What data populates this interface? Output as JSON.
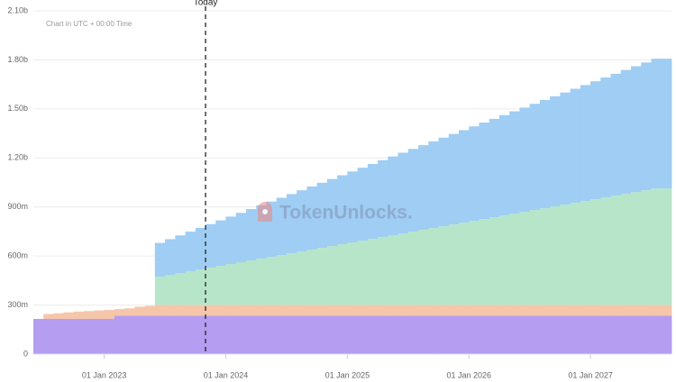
{
  "chart_data": {
    "type": "stacked-step-area",
    "note": "Chart in UTC + 00:00 Time",
    "watermark": "TokenUnlocks.",
    "annotation": {
      "x": "2023-11",
      "label": "Today"
    },
    "x": [
      "2022-06",
      "2022-07",
      "2022-08",
      "2022-09",
      "2022-10",
      "2022-11",
      "2022-12",
      "2023-01",
      "2023-02",
      "2023-03",
      "2023-04",
      "2023-05",
      "2023-06",
      "2023-07",
      "2023-08",
      "2023-09",
      "2023-10",
      "2023-11",
      "2023-12",
      "2024-01",
      "2024-02",
      "2024-03",
      "2024-04",
      "2024-05",
      "2024-06",
      "2024-07",
      "2024-08",
      "2024-09",
      "2024-10",
      "2024-11",
      "2024-12",
      "2025-01",
      "2025-02",
      "2025-03",
      "2025-04",
      "2025-05",
      "2025-06",
      "2025-07",
      "2025-08",
      "2025-09",
      "2025-10",
      "2025-11",
      "2025-12",
      "2026-01",
      "2026-02",
      "2026-03",
      "2026-04",
      "2026-05",
      "2026-06",
      "2026-07",
      "2026-08",
      "2026-09",
      "2026-10",
      "2026-11",
      "2026-12",
      "2027-01",
      "2027-02",
      "2027-03",
      "2027-04",
      "2027-05",
      "2027-06",
      "2027-07",
      "2027-08"
    ],
    "xlim": [
      "2022-06",
      "2027-09"
    ],
    "xticks": [
      {
        "value": "2023-01",
        "label": "01 Jan 2023"
      },
      {
        "value": "2024-01",
        "label": "01 Jan 2024"
      },
      {
        "value": "2025-01",
        "label": "01 Jan 2025"
      },
      {
        "value": "2026-01",
        "label": "01 Jan 2026"
      },
      {
        "value": "2027-01",
        "label": "01 Jan 2027"
      }
    ],
    "ylim": [
      0,
      2100
    ],
    "yticks": [
      0,
      {
        "value": 300,
        "label": "300m"
      },
      {
        "value": 600,
        "label": "600m"
      },
      {
        "value": 900,
        "label": "900m"
      },
      {
        "value": 1200,
        "label": "1.20b"
      },
      {
        "value": 1500,
        "label": "1.50b"
      },
      {
        "value": 1800,
        "label": "1.80b"
      },
      {
        "value": 2100,
        "label": "2.10b"
      }
    ],
    "grid": true,
    "series": [
      {
        "color": "#b59df1",
        "values": [
          215,
          215,
          215,
          215,
          215,
          215,
          215,
          215,
          235,
          235,
          235,
          235,
          235,
          235,
          235,
          235,
          235,
          235,
          235,
          235,
          235,
          235,
          235,
          235,
          235,
          235,
          235,
          235,
          235,
          235,
          235,
          235,
          235,
          235,
          235,
          235,
          235,
          235,
          235,
          235,
          235,
          235,
          235,
          235,
          235,
          235,
          235,
          235,
          235,
          235,
          235,
          235,
          235,
          235,
          235,
          235,
          235,
          235,
          235,
          235,
          235,
          235,
          235
        ]
      },
      {
        "color": "#f6c6aa",
        "values": [
          0,
          30,
          35,
          40,
          45,
          48,
          52,
          55,
          40,
          45,
          55,
          60,
          65,
          65,
          65,
          65,
          65,
          65,
          65,
          65,
          65,
          65,
          65,
          65,
          65,
          65,
          65,
          65,
          65,
          65,
          65,
          65,
          65,
          65,
          65,
          65,
          65,
          65,
          65,
          65,
          65,
          65,
          65,
          65,
          65,
          65,
          65,
          65,
          65,
          65,
          65,
          65,
          65,
          65,
          65,
          65,
          65,
          65,
          65,
          65,
          65,
          65,
          65
        ]
      },
      {
        "color": "#b7e5ca",
        "values": [
          0,
          0,
          0,
          0,
          0,
          0,
          0,
          0,
          0,
          0,
          0,
          0,
          174,
          185,
          196,
          207,
          218,
          229,
          240,
          251,
          262,
          273,
          284,
          295,
          306,
          317,
          328,
          339,
          350,
          361,
          372,
          383,
          394,
          405,
          416,
          427,
          438,
          449,
          460,
          471,
          482,
          493,
          504,
          515,
          526,
          537,
          548,
          559,
          570,
          581,
          592,
          603,
          614,
          625,
          636,
          647,
          658,
          669,
          680,
          691,
          702,
          713,
          713
        ]
      },
      {
        "color": "#9fcdf3",
        "values": [
          0,
          0,
          0,
          0,
          0,
          0,
          0,
          0,
          0,
          0,
          0,
          0,
          206,
          218,
          230,
          242,
          254,
          266,
          278,
          290,
          302,
          314,
          326,
          338,
          350,
          362,
          374,
          386,
          398,
          410,
          422,
          434,
          446,
          458,
          470,
          482,
          494,
          506,
          518,
          530,
          542,
          554,
          566,
          578,
          590,
          602,
          614,
          626,
          638,
          650,
          662,
          674,
          686,
          698,
          710,
          722,
          734,
          746,
          758,
          770,
          782,
          794,
          794
        ]
      }
    ]
  }
}
